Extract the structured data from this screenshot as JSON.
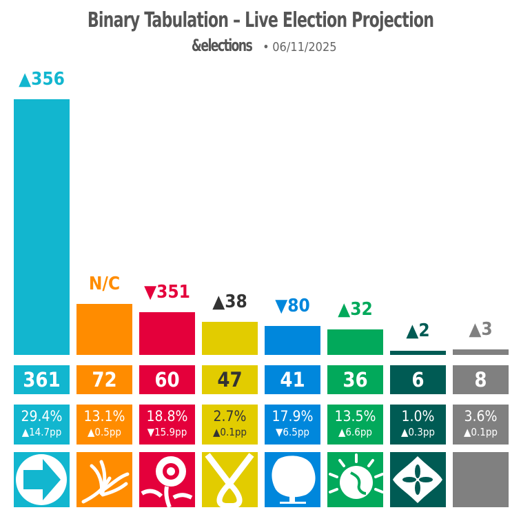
{
  "header": {
    "title": "Binary Tabulation – Live Election Projection",
    "brand": "&elections",
    "separator": "•",
    "date": "06/11/2025"
  },
  "chart_data": {
    "type": "bar",
    "title": "Binary Tabulation – Live Election Projection",
    "ylim": [
      0,
      361
    ],
    "parties": [
      {
        "logo": "reform-arrow-icon",
        "color": "#12B6CF",
        "text_color": "#ffffff",
        "seats": 361,
        "seat_change": "▲356",
        "vote_share": "29.4%",
        "vote_change": "▲14.7pp"
      },
      {
        "logo": "libdem-bird-icon",
        "color": "#FF8C00",
        "text_color": "#ffffff",
        "seats": 72,
        "seat_change": "N/C",
        "vote_share": "13.1%",
        "vote_change": "▲0.5pp"
      },
      {
        "logo": "labour-rose-icon",
        "color": "#E4003B",
        "text_color": "#ffffff",
        "seats": 60,
        "seat_change": "▼351",
        "vote_share": "18.8%",
        "vote_change": "▼15.9pp"
      },
      {
        "logo": "snp-ribbon-icon",
        "color": "#E2CC00",
        "text_color": "#333333",
        "seats": 47,
        "seat_change": "▲38",
        "vote_share": "2.7%",
        "vote_change": "▲0.1pp"
      },
      {
        "logo": "conservative-tree-icon",
        "color": "#0087DC",
        "text_color": "#ffffff",
        "seats": 41,
        "seat_change": "▼80",
        "vote_share": "17.9%",
        "vote_change": "▼6.5pp"
      },
      {
        "logo": "green-globe-icon",
        "color": "#02A95B",
        "text_color": "#ffffff",
        "seats": 36,
        "seat_change": "▲32",
        "vote_share": "13.5%",
        "vote_change": "▲6.6pp"
      },
      {
        "logo": "flower-icon",
        "color": "#005B54",
        "text_color": "#ffffff",
        "seats": 6,
        "seat_change": "▲2",
        "vote_share": "1.0%",
        "vote_change": "▲0.3pp"
      },
      {
        "logo": "other-blank-icon",
        "color": "#808080",
        "text_color": "#ffffff",
        "seats": 8,
        "seat_change": "▲3",
        "vote_share": "3.6%",
        "vote_change": "▲0.1pp"
      }
    ]
  }
}
